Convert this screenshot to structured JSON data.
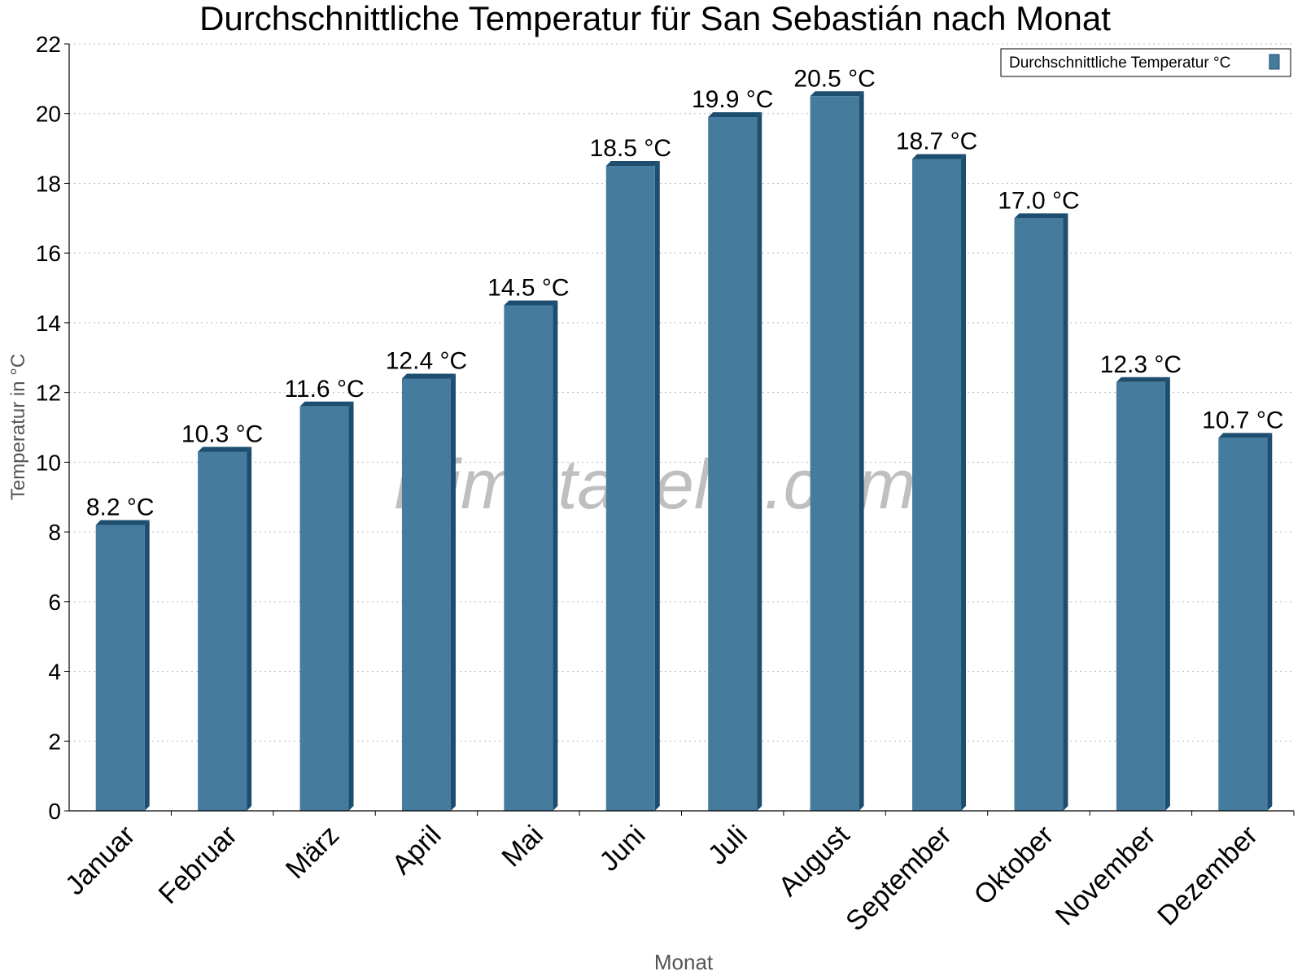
{
  "chart_data": {
    "type": "bar",
    "title": "Durchschnittliche Temperatur für San Sebastián nach Monat",
    "xlabel": "Monat",
    "ylabel": "Temperatur in °C",
    "categories": [
      "Januar",
      "Februar",
      "März",
      "April",
      "Mai",
      "Juni",
      "Juli",
      "August",
      "September",
      "Oktober",
      "November",
      "Dezember"
    ],
    "series": [
      {
        "name": "Durchschnittliche Temperatur °C",
        "values": [
          8.2,
          10.3,
          11.6,
          12.4,
          14.5,
          18.5,
          19.9,
          20.5,
          18.7,
          17.0,
          12.3,
          10.7
        ],
        "labels": [
          "8.2 °C",
          "10.3 °C",
          "11.6 °C",
          "12.4 °C",
          "14.5 °C",
          "18.5 °C",
          "19.9 °C",
          "20.5 °C",
          "18.7 °C",
          "17.0 °C",
          "12.3 °C",
          "10.7 °C"
        ],
        "color": "#457b9d",
        "edge_color": "#1d4e6f"
      }
    ],
    "ylim": [
      0,
      22
    ],
    "yticks": [
      0,
      2,
      4,
      6,
      8,
      10,
      12,
      14,
      16,
      18,
      20,
      22
    ],
    "grid": "horizontal dotted",
    "legend_position": "top-right",
    "watermark": "klimatabelle.com"
  }
}
